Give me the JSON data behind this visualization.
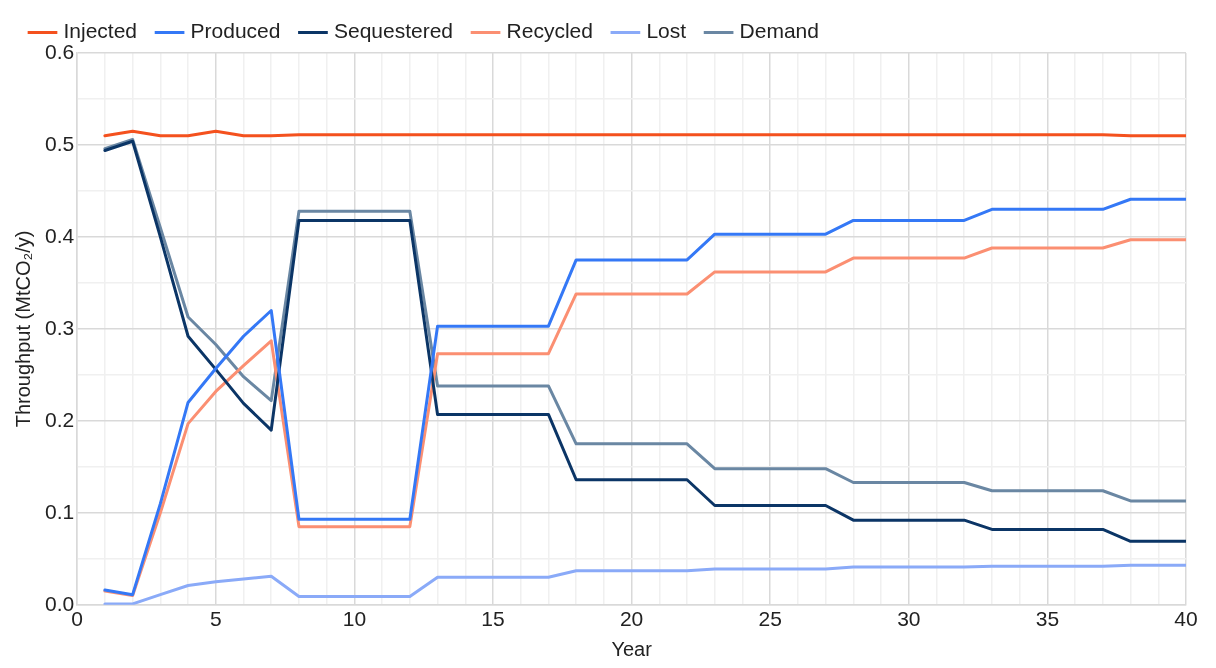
{
  "chart_data": {
    "type": "line",
    "xlabel": "Year",
    "ylabel": "Throughput (MtCO₂/y)",
    "legend": "top",
    "grid": true,
    "marker": "none",
    "line_style": "solid",
    "x": [
      1,
      2,
      3,
      4,
      5,
      6,
      7,
      8,
      9,
      10,
      11,
      12,
      13,
      14,
      15,
      16,
      17,
      18,
      19,
      20,
      21,
      22,
      23,
      24,
      25,
      26,
      27,
      28,
      29,
      30,
      31,
      32,
      33,
      34,
      35,
      36,
      37,
      38,
      39,
      40
    ],
    "xlim": [
      0,
      40
    ],
    "xticks": [
      0,
      {
        "value": 1,
        "label": null
      },
      {
        "value": 2,
        "label": null
      },
      {
        "value": 3,
        "label": null
      },
      {
        "value": 4,
        "label": null
      },
      5,
      {
        "value": 6,
        "label": null
      },
      {
        "value": 7,
        "label": null
      },
      {
        "value": 8,
        "label": null
      },
      {
        "value": 9,
        "label": null
      },
      10,
      {
        "value": 11,
        "label": null
      },
      {
        "value": 12,
        "label": null
      },
      {
        "value": 13,
        "label": null
      },
      {
        "value": 14,
        "label": null
      },
      15,
      {
        "value": 16,
        "label": null
      },
      {
        "value": 17,
        "label": null
      },
      {
        "value": 18,
        "label": null
      },
      {
        "value": 19,
        "label": null
      },
      20,
      {
        "value": 21,
        "label": null
      },
      {
        "value": 22,
        "label": null
      },
      {
        "value": 23,
        "label": null
      },
      {
        "value": 24,
        "label": null
      },
      25,
      {
        "value": 26,
        "label": null
      },
      {
        "value": 27,
        "label": null
      },
      {
        "value": 28,
        "label": null
      },
      {
        "value": 29,
        "label": null
      },
      30,
      {
        "value": 31,
        "label": null
      },
      {
        "value": 32,
        "label": null
      },
      {
        "value": 33,
        "label": null
      },
      {
        "value": 34,
        "label": null
      },
      35,
      {
        "value": 36,
        "label": null
      },
      {
        "value": 37,
        "label": null
      },
      {
        "value": 38,
        "label": null
      },
      {
        "value": 39,
        "label": null
      },
      40
    ],
    "ylim": [
      0,
      0.6
    ],
    "yticks": [
      {
        "value": 0,
        "label": "0.0"
      },
      {
        "value": 0.05,
        "label": null
      },
      {
        "value": 0.1,
        "label": "0.1"
      },
      {
        "value": 0.15,
        "label": null
      },
      {
        "value": 0.2,
        "label": "0.2"
      },
      {
        "value": 0.25,
        "label": null
      },
      {
        "value": 0.3,
        "label": "0.3"
      },
      {
        "value": 0.35,
        "label": null
      },
      {
        "value": 0.4,
        "label": "0.4"
      },
      {
        "value": 0.45,
        "label": null
      },
      {
        "value": 0.5,
        "label": "0.5"
      },
      {
        "value": 0.55,
        "label": null
      },
      {
        "value": 0.6,
        "label": "0.6"
      }
    ],
    "series": [
      {
        "name": "Injected",
        "color": "#f4511e",
        "values": [
          0.51,
          0.515,
          0.51,
          0.51,
          0.515,
          0.51,
          0.51,
          0.511,
          0.511,
          0.511,
          0.511,
          0.511,
          0.511,
          0.511,
          0.511,
          0.511,
          0.511,
          0.511,
          0.511,
          0.511,
          0.511,
          0.511,
          0.511,
          0.511,
          0.511,
          0.511,
          0.511,
          0.511,
          0.511,
          0.511,
          0.511,
          0.511,
          0.511,
          0.511,
          0.511,
          0.511,
          0.511,
          0.51,
          0.51,
          0.51
        ]
      },
      {
        "name": "Produced",
        "color": "#3478f6",
        "values": [
          0.016,
          0.011,
          0.11,
          0.22,
          0.257,
          0.292,
          0.32,
          0.093,
          0.093,
          0.093,
          0.093,
          0.093,
          0.303,
          0.303,
          0.303,
          0.303,
          0.303,
          0.375,
          0.375,
          0.375,
          0.375,
          0.375,
          0.403,
          0.403,
          0.403,
          0.403,
          0.403,
          0.418,
          0.418,
          0.418,
          0.418,
          0.418,
          0.43,
          0.43,
          0.43,
          0.43,
          0.43,
          0.441,
          0.441,
          0.441
        ]
      },
      {
        "name": "Sequestered",
        "color": "#0b3566",
        "values": [
          0.494,
          0.504,
          0.4,
          0.292,
          0.256,
          0.219,
          0.19,
          0.418,
          0.418,
          0.418,
          0.418,
          0.418,
          0.207,
          0.207,
          0.207,
          0.207,
          0.207,
          0.136,
          0.136,
          0.136,
          0.136,
          0.136,
          0.108,
          0.108,
          0.108,
          0.108,
          0.108,
          0.092,
          0.092,
          0.092,
          0.092,
          0.092,
          0.082,
          0.082,
          0.082,
          0.082,
          0.082,
          0.069,
          0.069,
          0.069
        ]
      },
      {
        "name": "Recycled",
        "color": "#fb8f72",
        "values": [
          0.015,
          0.01,
          0.1,
          0.197,
          0.232,
          0.26,
          0.287,
          0.085,
          0.085,
          0.085,
          0.085,
          0.085,
          0.273,
          0.273,
          0.273,
          0.273,
          0.273,
          0.338,
          0.338,
          0.338,
          0.338,
          0.338,
          0.362,
          0.362,
          0.362,
          0.362,
          0.362,
          0.377,
          0.377,
          0.377,
          0.377,
          0.377,
          0.388,
          0.388,
          0.388,
          0.388,
          0.388,
          0.397,
          0.397,
          0.397
        ]
      },
      {
        "name": "Lost",
        "color": "#8aaaf8",
        "values": [
          0.001,
          0.001,
          0.011,
          0.021,
          0.025,
          0.028,
          0.031,
          0.009,
          0.009,
          0.009,
          0.009,
          0.009,
          0.03,
          0.03,
          0.03,
          0.03,
          0.03,
          0.037,
          0.037,
          0.037,
          0.037,
          0.037,
          0.039,
          0.039,
          0.039,
          0.039,
          0.039,
          0.041,
          0.041,
          0.041,
          0.041,
          0.041,
          0.042,
          0.042,
          0.042,
          0.042,
          0.042,
          0.043,
          0.043,
          0.043
        ]
      },
      {
        "name": "Demand",
        "color": "#6a87a3",
        "values": [
          0.496,
          0.506,
          0.41,
          0.313,
          0.283,
          0.248,
          0.222,
          0.428,
          0.428,
          0.428,
          0.428,
          0.428,
          0.238,
          0.238,
          0.238,
          0.238,
          0.238,
          0.175,
          0.175,
          0.175,
          0.175,
          0.175,
          0.148,
          0.148,
          0.148,
          0.148,
          0.148,
          0.133,
          0.133,
          0.133,
          0.133,
          0.133,
          0.124,
          0.124,
          0.124,
          0.124,
          0.124,
          0.113,
          0.113,
          0.113
        ]
      }
    ]
  }
}
